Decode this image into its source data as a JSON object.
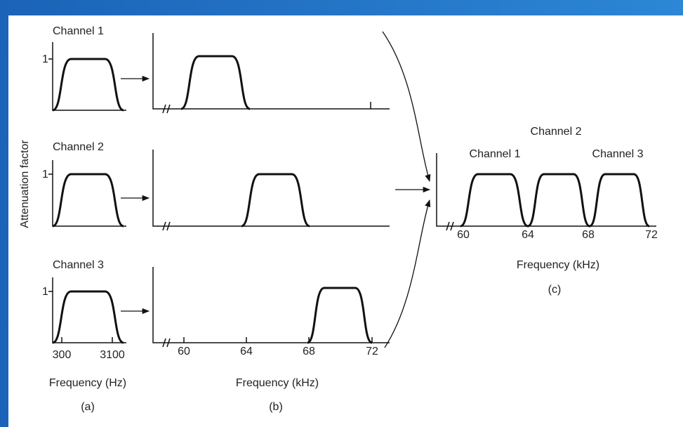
{
  "y_axis_label": "Attenuation factor",
  "panel_a": {
    "channels": [
      {
        "label": "Channel 1",
        "peak": "1"
      },
      {
        "label": "Channel 2",
        "peak": "1"
      },
      {
        "label": "Channel 3",
        "peak": "1"
      }
    ],
    "ticks": [
      "300",
      "3100"
    ],
    "axis_label": "Frequency (Hz)",
    "caption": "(a)"
  },
  "panel_b": {
    "ticks": [
      "60",
      "64",
      "68",
      "72"
    ],
    "axis_label": "Frequency (kHz)",
    "caption": "(b)"
  },
  "panel_c": {
    "channel_labels": [
      "Channel 1",
      "Channel 2",
      "Channel 3"
    ],
    "ticks": [
      "60",
      "64",
      "68",
      "72"
    ],
    "axis_label": "Frequency (kHz)",
    "caption": "(c)"
  }
}
